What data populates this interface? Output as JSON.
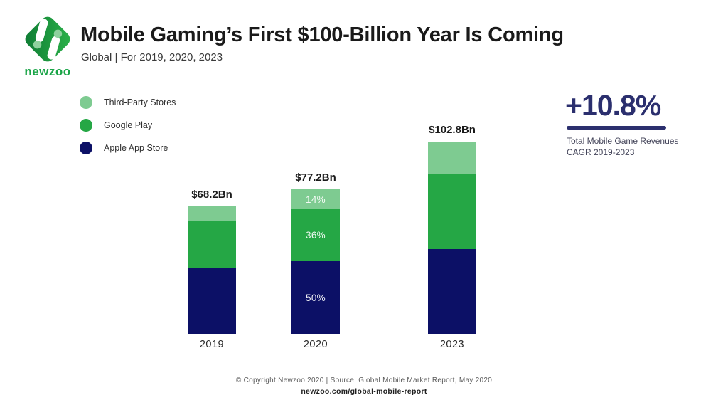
{
  "header": {
    "logo_text": "newzoo",
    "title": "Mobile Gaming’s First $100-Billion Year Is Coming",
    "subtitle": "Global | For 2019, 2020, 2023"
  },
  "legend": {
    "items": [
      {
        "label": "Third-Party Stores",
        "color": "#7ecb91"
      },
      {
        "label": "Google Play",
        "color": "#25a745"
      },
      {
        "label": "Apple App Store",
        "color": "#0c1066"
      }
    ]
  },
  "kpi": {
    "value": "+10.8%",
    "caption_line1": "Total Mobile Game Revenues",
    "caption_line2": "CAGR 2019-2023",
    "color": "#2b2f6e"
  },
  "chart_data": {
    "type": "bar",
    "stacked": true,
    "title": "Mobile Gaming’s First $100-Billion Year Is Coming",
    "categories": [
      "2019",
      "2020",
      "2023"
    ],
    "totals_label": [
      "$68.2Bn",
      "$77.2Bn",
      "$102.8Bn"
    ],
    "totals_bn": [
      68.2,
      77.2,
      102.8
    ],
    "series": [
      {
        "name": "Apple App Store",
        "color": "#0c1066",
        "share_pct": [
          51.5,
          50,
          44
        ],
        "segment_labels": [
          "",
          "50%",
          ""
        ]
      },
      {
        "name": "Google Play",
        "color": "#25a745",
        "share_pct": [
          36.5,
          36,
          39
        ],
        "segment_labels": [
          "",
          "36%",
          ""
        ]
      },
      {
        "name": "Third-Party Stores",
        "color": "#7ecb91",
        "share_pct": [
          12,
          14,
          17
        ],
        "segment_labels": [
          "",
          "14%",
          ""
        ]
      }
    ],
    "legend_position": "top-left",
    "axes": "none",
    "grid": false
  },
  "footer": {
    "copyright": "© Copyright Newzoo 2020 | Source: Global Mobile Market Report, May 2020",
    "link": "newzoo.com/global-mobile-report"
  }
}
